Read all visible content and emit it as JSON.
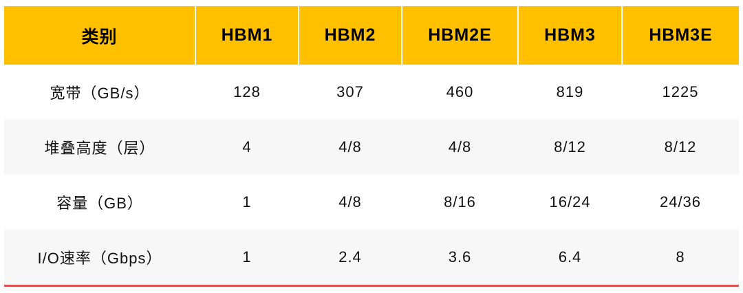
{
  "table": {
    "headers": [
      "类别",
      "HBM1",
      "HBM2",
      "HBM2E",
      "HBM3",
      "HBM3E"
    ],
    "rows": [
      [
        "宽带（GB/s）",
        "128",
        "307",
        "460",
        "819",
        "1225"
      ],
      [
        "堆叠高度（层）",
        "4",
        "4/8",
        "4/8",
        "8/12",
        "8/12"
      ],
      [
        "容量（GB）",
        "1",
        "4/8",
        "8/16",
        "16/24",
        "24/36"
      ],
      [
        "I/O速率（Gbps）",
        "1",
        "2.4",
        "3.6",
        "6.4",
        "8"
      ]
    ]
  },
  "colors": {
    "header_bg": "#FFC000",
    "alt_row_bg": "#F7F7F7",
    "bottom_rule": "#E05252"
  }
}
